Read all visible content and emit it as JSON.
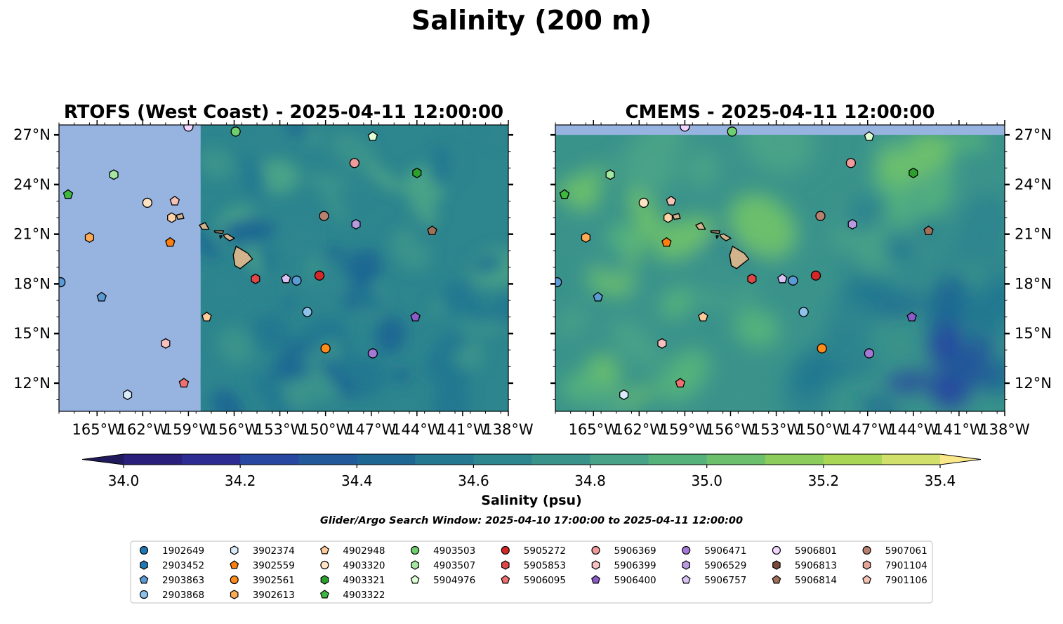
{
  "figure": {
    "suptitle": "Salinity (200 m)",
    "colorbar_label": "Salinity (psu)",
    "search_window": "Glider/Argo Search Window: 2025-04-10 17:00:00 to 2025-04-11 12:00:00"
  },
  "chart_data": [
    {
      "type": "heatmap",
      "title": "RTOFS (West Coast) - 2025-04-11 12:00:00",
      "xlim": [
        -167.5,
        -138
      ],
      "ylim": [
        10.3,
        27.6
      ],
      "x_ticks": [
        -165,
        -162,
        -159,
        -156,
        -153,
        -150,
        -147,
        -144,
        -141,
        -138
      ],
      "x_tick_labels": [
        "165°W",
        "162°W",
        "159°W",
        "156°W",
        "153°W",
        "150°W",
        "147°W",
        "144°W",
        "141°W",
        "138°W"
      ],
      "y_ticks": [
        12,
        15,
        18,
        21,
        24,
        27
      ],
      "y_tick_labels": [
        "12°N",
        "15°N",
        "18°N",
        "21°N",
        "24°N",
        "27°N"
      ],
      "y_labels_side": "left",
      "field_lon_range": [
        -158.2,
        -138
      ],
      "field_lat_range": [
        10.3,
        27.6
      ]
    },
    {
      "type": "heatmap",
      "title": "CMEMS - 2025-04-11 12:00:00",
      "xlim": [
        -167.5,
        -138
      ],
      "ylim": [
        10.3,
        27.6
      ],
      "x_ticks": [
        -165,
        -162,
        -159,
        -156,
        -153,
        -150,
        -147,
        -144,
        -141,
        -138
      ],
      "x_tick_labels": [
        "165°W",
        "162°W",
        "159°W",
        "156°W",
        "153°W",
        "150°W",
        "147°W",
        "144°W",
        "141°W",
        "138°W"
      ],
      "y_ticks": [
        12,
        15,
        18,
        21,
        24,
        27
      ],
      "y_tick_labels": [
        "12°N",
        "15°N",
        "18°N",
        "21°N",
        "24°N",
        "27°N"
      ],
      "y_labels_side": "right",
      "field_lon_range": [
        -167.5,
        -138
      ],
      "field_lat_range": [
        10.3,
        27.0
      ]
    }
  ],
  "colorbar": {
    "levels": [
      34.0,
      34.1,
      34.2,
      34.3,
      34.4,
      34.5,
      34.6,
      34.7,
      34.8,
      34.9,
      35.0,
      35.1,
      35.2,
      35.3,
      35.4
    ],
    "colors": [
      "#2a1f7a",
      "#2c2c92",
      "#2747a0",
      "#21599a",
      "#1e6793",
      "#247890",
      "#2d858e",
      "#3a938b",
      "#48a287",
      "#55b27b",
      "#6cbf6c",
      "#8ccc5c",
      "#aad655",
      "#d1e06a"
    ],
    "under_color": "#201a5c",
    "over_color": "#fbe88a",
    "ticks": [
      34.0,
      34.2,
      34.4,
      34.6,
      34.8,
      35.0,
      35.2,
      35.4
    ],
    "tick_labels": [
      "34.0",
      "34.2",
      "34.4",
      "34.6",
      "34.8",
      "35.0",
      "35.2",
      "35.4"
    ]
  },
  "map_colors": {
    "ocean_background": "#97b3e0",
    "land": "#d2b48c"
  },
  "floats": [
    {
      "id": "1902649",
      "marker": "circle",
      "color": "#1f77b4",
      "lon": null,
      "lat": null
    },
    {
      "id": "2903452",
      "marker": "hexagon",
      "color": "#1f77b4",
      "lon": null,
      "lat": null
    },
    {
      "id": "2903863",
      "marker": "pentagon",
      "color": "#5b9bd5",
      "lon": -164.7,
      "lat": 17.2
    },
    {
      "id": "2903868",
      "marker": "circle",
      "color": "#8ec2ea",
      "lon": -151.2,
      "lat": 16.3
    },
    {
      "id": "3902374",
      "marker": "hexagon",
      "color": "#d9ecfb",
      "lon": -163.0,
      "lat": 11.3
    },
    {
      "id": "3902559",
      "marker": "pentagon",
      "color": "#ff7f0e",
      "lon": -160.2,
      "lat": 20.5
    },
    {
      "id": "3902561",
      "marker": "circle",
      "color": "#ff8c1a",
      "lon": -150.0,
      "lat": 14.1
    },
    {
      "id": "3902613",
      "marker": "hexagon",
      "color": "#ffaa55",
      "lon": -165.5,
      "lat": 20.8
    },
    {
      "id": "4902948",
      "marker": "pentagon",
      "color": "#ffcc99",
      "lon": -157.8,
      "lat": 16.0
    },
    {
      "id": "4903320",
      "marker": "circle",
      "color": "#ffe3c2",
      "lon": -161.7,
      "lat": 22.9
    },
    {
      "id": "4903321",
      "marker": "hexagon",
      "color": "#2ca02c",
      "lon": -144.0,
      "lat": 24.7
    },
    {
      "id": "4903322",
      "marker": "pentagon",
      "color": "#3fb83f",
      "lon": -166.9,
      "lat": 23.4
    },
    {
      "id": "4903503",
      "marker": "circle",
      "color": "#6fcf6f",
      "lon": -155.9,
      "lat": 27.2
    },
    {
      "id": "4903507",
      "marker": "hexagon",
      "color": "#a5e6a0",
      "lon": -163.9,
      "lat": 24.6
    },
    {
      "id": "5904976",
      "marker": "pentagon",
      "color": "#e0ffd6",
      "lon": -146.9,
      "lat": 26.9
    },
    {
      "id": "5905272",
      "marker": "circle",
      "color": "#d62728",
      "lon": -150.4,
      "lat": 18.5
    },
    {
      "id": "5905853",
      "marker": "hexagon",
      "color": "#e04848",
      "lon": -154.6,
      "lat": 18.3
    },
    {
      "id": "5906095",
      "marker": "pentagon",
      "color": "#ef7070",
      "lon": -159.3,
      "lat": 12.0
    },
    {
      "id": "5906369",
      "marker": "circle",
      "color": "#f09a9a",
      "lon": -148.1,
      "lat": 25.3
    },
    {
      "id": "5906399",
      "marker": "hexagon",
      "color": "#f8c0c0",
      "lon": -160.5,
      "lat": 14.4
    },
    {
      "id": "5906400",
      "marker": "pentagon",
      "color": "#8a5cc8",
      "lon": -144.1,
      "lat": 16.0
    },
    {
      "id": "5906471",
      "marker": "circle",
      "color": "#a378d6",
      "lon": -146.9,
      "lat": 13.8
    },
    {
      "id": "5906529",
      "marker": "hexagon",
      "color": "#b99ae0",
      "lon": -148.0,
      "lat": 21.6
    },
    {
      "id": "5906757",
      "marker": "pentagon",
      "color": "#d9c2f5",
      "lon": -152.6,
      "lat": 18.3
    },
    {
      "id": "5906801",
      "marker": "circle",
      "color": "#f3d6ff",
      "lon": -159.0,
      "lat": 27.5
    },
    {
      "id": "5906813",
      "marker": "hexagon",
      "color": "#7a4b3a",
      "lon": null,
      "lat": null
    },
    {
      "id": "5906814",
      "marker": "pentagon",
      "color": "#a0705a",
      "lon": -143.0,
      "lat": 21.2
    },
    {
      "id": "5907061",
      "marker": "circle",
      "color": "#b98070",
      "lon": -150.1,
      "lat": 22.1
    },
    {
      "id": "7901104",
      "marker": "hexagon",
      "color": "#e4a597",
      "lon": null,
      "lat": null
    },
    {
      "id": "7901106",
      "marker": "pentagon",
      "color": "#f5c3b6",
      "lon": -159.9,
      "lat": 23.0
    },
    {
      "id": "extra-blue-edge",
      "marker": "circle",
      "color": "#5b9bd5",
      "lon": -167.4,
      "lat": 18.1,
      "legend": false
    },
    {
      "id": "extra-blue-mid",
      "marker": "circle",
      "color": "#5b9bd5",
      "lon": -151.9,
      "lat": 18.2,
      "legend": false
    },
    {
      "id": "extra-peach",
      "marker": "hexagon",
      "color": "#ffd5a8",
      "lon": -160.1,
      "lat": 22.0,
      "legend": false
    }
  ],
  "legend_order": [
    "1902649",
    "2903452",
    "2903863",
    "2903868",
    "3902374",
    "3902559",
    "3902561",
    "3902613",
    "4902948",
    "4903320",
    "4903321",
    "4903322",
    "4903503",
    "4903507",
    "5904976",
    "5905272",
    "5905853",
    "5906095",
    "5906369",
    "5906399",
    "5906400",
    "5906471",
    "5906529",
    "5906757",
    "5906801",
    "5906813",
    "5906814",
    "5907061",
    "7901104",
    "7901106"
  ]
}
